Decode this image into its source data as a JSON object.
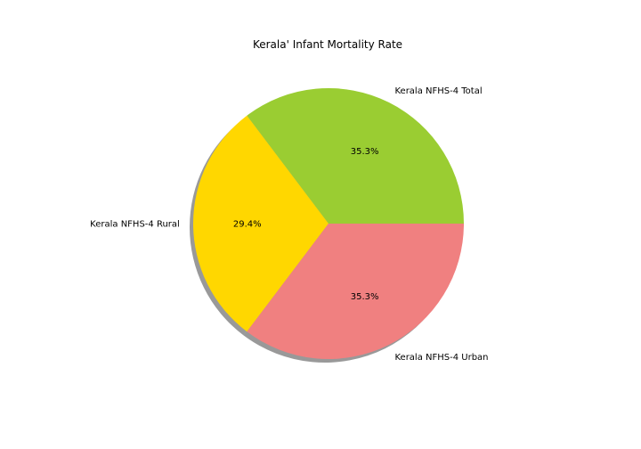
{
  "chart_data": {
    "type": "pie",
    "title": "Kerala' Infant Mortality Rate",
    "labels": [
      "Kerala NFHS-4 Total",
      "Kerala NFHS-4 Rural",
      "Kerala NFHS-4 Urban"
    ],
    "values": [
      35.3,
      29.4,
      35.3
    ],
    "percent_labels": [
      "35.3%",
      "29.4%",
      "35.3%"
    ],
    "colors": [
      "#9acd32",
      "#ffd700",
      "#f08080"
    ],
    "start_angle_deg": 0,
    "direction": "counterclockwise",
    "shadow": true
  }
}
